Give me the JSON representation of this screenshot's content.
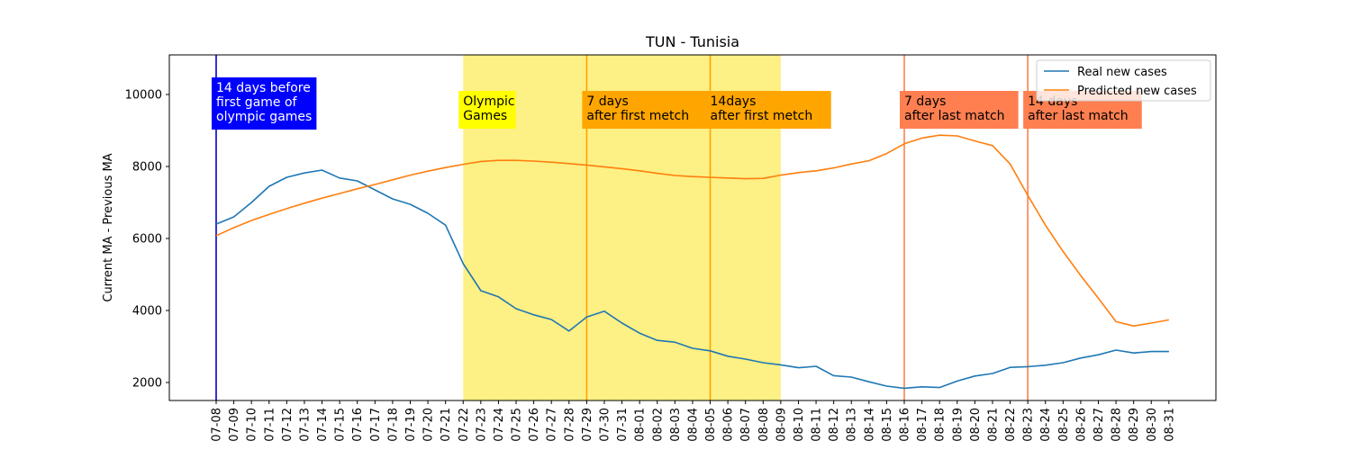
{
  "chart_data": {
    "type": "line",
    "title": "TUN - Tunisia",
    "xlabel": "",
    "ylabel": "Current MA - Previous MA",
    "ylim": [
      1500,
      11100
    ],
    "yticks": [
      2000,
      4000,
      6000,
      8000,
      10000
    ],
    "grid": false,
    "legend_position": "top-right",
    "categories": [
      "07-08",
      "07-09",
      "07-10",
      "07-11",
      "07-12",
      "07-13",
      "07-14",
      "07-15",
      "07-16",
      "07-17",
      "07-18",
      "07-19",
      "07-20",
      "07-21",
      "07-22",
      "07-23",
      "07-24",
      "07-25",
      "07-26",
      "07-27",
      "07-28",
      "07-29",
      "07-30",
      "07-31",
      "08-01",
      "08-02",
      "08-03",
      "08-04",
      "08-05",
      "08-06",
      "08-07",
      "08-08",
      "08-09",
      "08-10",
      "08-11",
      "08-12",
      "08-13",
      "08-14",
      "08-15",
      "08-16",
      "08-17",
      "08-18",
      "08-19",
      "08-20",
      "08-21",
      "08-22",
      "08-23",
      "08-24",
      "08-25",
      "08-26",
      "08-27",
      "08-28",
      "08-29",
      "08-30",
      "08-31"
    ],
    "series": [
      {
        "name": "Real new cases",
        "color": "#1f77b4",
        "values": [
          6400,
          6600,
          7000,
          7450,
          7700,
          7820,
          7900,
          7680,
          7600,
          7350,
          7100,
          6950,
          6700,
          6370,
          5300,
          4550,
          4380,
          4050,
          3880,
          3750,
          3430,
          3820,
          3980,
          3650,
          3370,
          3170,
          3120,
          2950,
          2880,
          2730,
          2650,
          2550,
          2490,
          2410,
          2450,
          2190,
          2150,
          2020,
          1900,
          1840,
          1880,
          1860,
          2040,
          2180,
          2250,
          2420,
          2440,
          2480,
          2550,
          2680,
          2770,
          2900,
          2820,
          2860,
          2860
        ]
      },
      {
        "name": "Predicted new cases",
        "color": "#ff7f0e",
        "values": [
          6080,
          6300,
          6500,
          6670,
          6830,
          6980,
          7120,
          7250,
          7380,
          7500,
          7630,
          7760,
          7870,
          7970,
          8060,
          8140,
          8170,
          8170,
          8150,
          8120,
          8080,
          8040,
          7990,
          7940,
          7880,
          7810,
          7750,
          7720,
          7700,
          7680,
          7660,
          7670,
          7760,
          7830,
          7880,
          7960,
          8070,
          8160,
          8360,
          8630,
          8790,
          8870,
          8850,
          8710,
          8580,
          8070,
          7200,
          6370,
          5640,
          4970,
          4340,
          3690,
          3570,
          3650,
          3740
        ]
      }
    ],
    "shaded_regions": [
      {
        "start": "07-22",
        "end": "08-09",
        "color": "#fdf084"
      }
    ],
    "vertical_lines": [
      {
        "at": "07-08",
        "color": "#0000cc"
      },
      {
        "at": "07-29",
        "color": "#ffa500"
      },
      {
        "at": "08-05",
        "color": "#ffa500"
      },
      {
        "at": "08-16",
        "color": "#ff7f50"
      },
      {
        "at": "08-23",
        "color": "#ff7f50"
      }
    ],
    "annotations": [
      {
        "at": "07-08",
        "lines": [
          "14 days before",
          "first game of",
          "olympic games"
        ],
        "bg": "#0000ff",
        "fg": "#ffffff"
      },
      {
        "at": "07-22",
        "lines": [
          "Olympic",
          "Games"
        ],
        "bg": "#ffff00",
        "fg": "#000000"
      },
      {
        "at": "07-29",
        "lines": [
          "7 days",
          "after first metch"
        ],
        "bg": "#ffa500",
        "fg": "#000000"
      },
      {
        "at": "08-05",
        "lines": [
          "14days",
          "after first metch"
        ],
        "bg": "#ffa500",
        "fg": "#000000"
      },
      {
        "at": "08-16",
        "lines": [
          "7 days",
          "after last match"
        ],
        "bg": "#ff7f50",
        "fg": "#000000"
      },
      {
        "at": "08-23",
        "lines": [
          "14 days",
          "after last match"
        ],
        "bg": "#ff7f50",
        "fg": "#000000"
      }
    ]
  }
}
